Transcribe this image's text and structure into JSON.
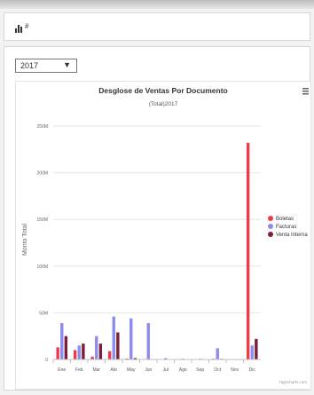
{
  "header": {
    "icon": "bar-chart-icon"
  },
  "filter": {
    "year_value": "2017"
  },
  "chart_data": {
    "type": "bar",
    "title": "Desglose de Ventas Por Documento",
    "subtitle": "(Total)2017",
    "ylabel": "Monto Total",
    "xlabel": "",
    "categories": [
      "Ene",
      "Feb",
      "Mar",
      "Abr",
      "May",
      "Jun",
      "Jul",
      "Ago",
      "Sep",
      "Oct",
      "Nov",
      "Dic"
    ],
    "ylim": [
      0,
      250000000
    ],
    "yticks": [
      0,
      50000000,
      100000000,
      150000000,
      200000000,
      250000000
    ],
    "ytick_labels": [
      "0",
      "50M",
      "100M",
      "150M",
      "200M",
      "250M"
    ],
    "grid": true,
    "legend": "right",
    "series": [
      {
        "name": "Boletas",
        "color": "#ee3b4a",
        "values": [
          13000000,
          10000000,
          3000000,
          9000000,
          1000000,
          500000,
          300000,
          300000,
          200000,
          800000,
          200000,
          232000000
        ]
      },
      {
        "name": "Facturas",
        "color": "#8c8cf0",
        "values": [
          39000000,
          15000000,
          25000000,
          46000000,
          44000000,
          39000000,
          1500000,
          800000,
          800000,
          12000000,
          500000,
          15000000
        ]
      },
      {
        "name": "Venta Interna",
        "color": "#7b1f3a",
        "values": [
          25000000,
          17000000,
          17000000,
          29000000,
          1500000,
          500000,
          300000,
          300000,
          200000,
          700000,
          200000,
          22000000
        ]
      }
    ],
    "credits": "Highcharts.com"
  }
}
